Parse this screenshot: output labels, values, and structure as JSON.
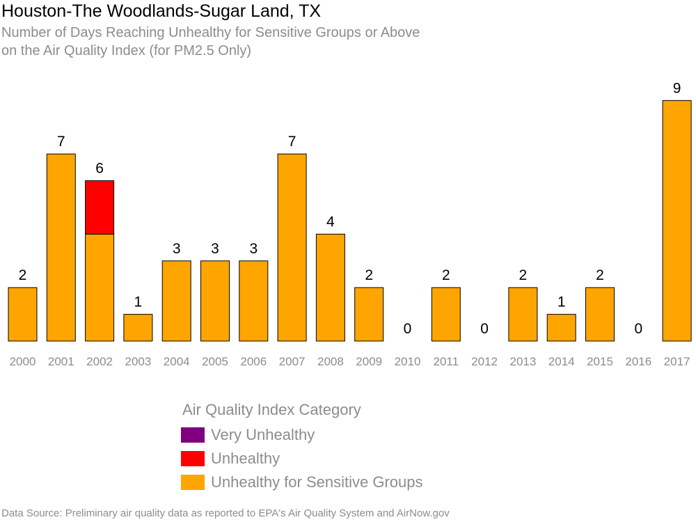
{
  "chart_data": {
    "type": "bar",
    "title": "Houston-The Woodlands-Sugar Land, TX",
    "subtitle": [
      "Number of Days Reaching Unhealthy for Sensitive Groups or Above",
      "on the Air Quality Index (for PM2.5 Only)"
    ],
    "stacked": true,
    "categories": [
      "2000",
      "2001",
      "2002",
      "2003",
      "2004",
      "2005",
      "2006",
      "2007",
      "2008",
      "2009",
      "2010",
      "2011",
      "2012",
      "2013",
      "2014",
      "2015",
      "2016",
      "2017"
    ],
    "series": [
      {
        "name": "Unhealthy for Sensitive Groups",
        "color": "#FFA500",
        "values": [
          2,
          7,
          4,
          1,
          3,
          3,
          3,
          7,
          4,
          2,
          0,
          2,
          0,
          2,
          1,
          2,
          0,
          9
        ]
      },
      {
        "name": "Unhealthy",
        "color": "#FF0000",
        "values": [
          0,
          0,
          2,
          0,
          0,
          0,
          0,
          0,
          0,
          0,
          0,
          0,
          0,
          0,
          0,
          0,
          0,
          0
        ]
      },
      {
        "name": "Very Unhealthy",
        "color": "#800080",
        "values": [
          0,
          0,
          0,
          0,
          0,
          0,
          0,
          0,
          0,
          0,
          0,
          0,
          0,
          0,
          0,
          0,
          0,
          0
        ]
      }
    ],
    "totals": [
      2,
      7,
      6,
      1,
      3,
      3,
      3,
      7,
      4,
      2,
      0,
      2,
      0,
      2,
      1,
      2,
      0,
      9
    ],
    "ylim": [
      0,
      9
    ],
    "grid": false,
    "legend_placement": "bottom-center",
    "legend": {
      "title": "Air Quality Index Category",
      "entries": [
        {
          "label": "Very Unhealthy",
          "color": "#800080"
        },
        {
          "label": "Unhealthy",
          "color": "#FF0000"
        },
        {
          "label": "Unhealthy for Sensitive Groups",
          "color": "#FFA500"
        }
      ]
    }
  },
  "footer": {
    "source": "Data Source: Preliminary air quality data as reported to EPA's Air Quality System and AirNow.gov"
  }
}
